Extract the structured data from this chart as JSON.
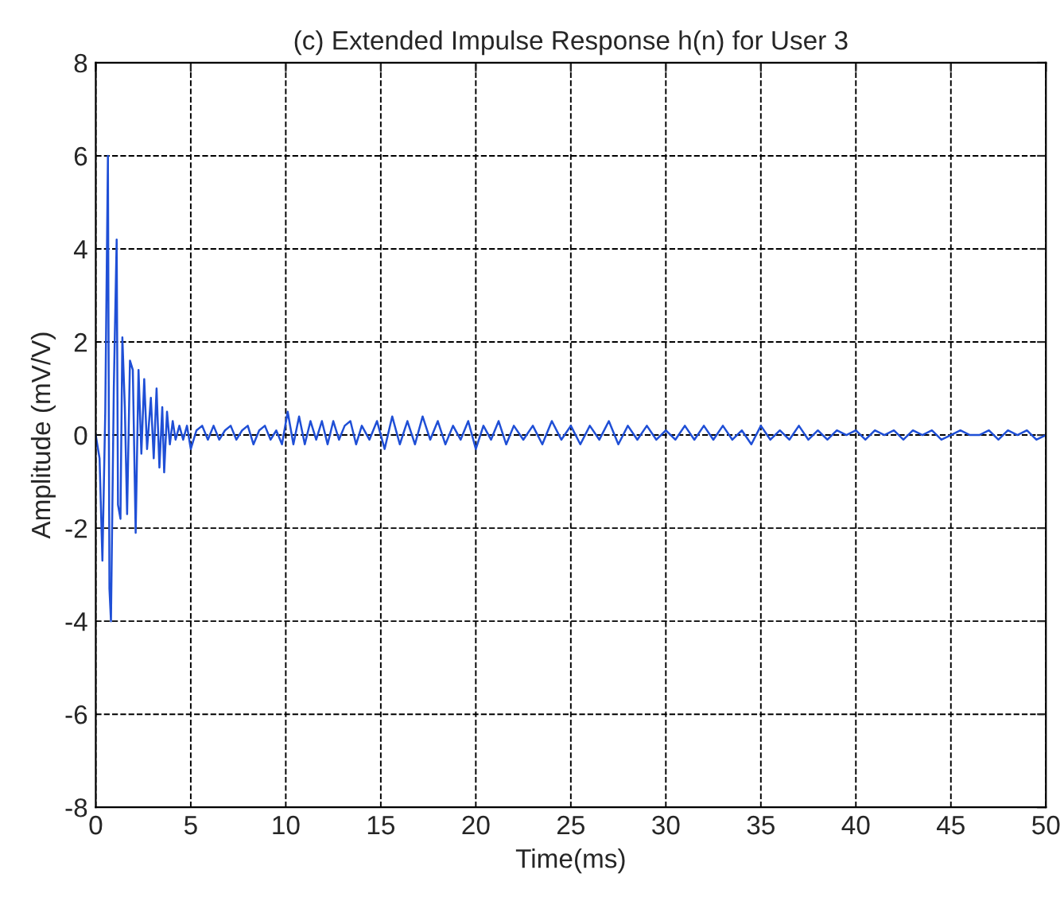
{
  "chart_data": {
    "type": "line",
    "title": "(c) Extended Impulse Response h(n) for User 3",
    "xlabel": "Time(ms)",
    "ylabel": "Amplitude (mV/V)",
    "x": [
      0,
      0.2,
      0.35,
      0.5,
      0.64,
      0.72,
      0.8,
      0.95,
      1.1,
      1.17,
      1.3,
      1.4,
      1.53,
      1.65,
      1.8,
      1.95,
      2.1,
      2.25,
      2.4,
      2.55,
      2.7,
      2.9,
      3.05,
      3.2,
      3.35,
      3.5,
      3.6,
      3.75,
      3.9,
      4.05,
      4.2,
      4.4,
      4.6,
      4.8,
      5.0,
      5.3,
      5.6,
      5.9,
      6.2,
      6.5,
      6.8,
      7.1,
      7.4,
      7.7,
      8.0,
      8.3,
      8.6,
      8.9,
      9.2,
      9.5,
      9.8,
      10.1,
      10.4,
      10.7,
      11.0,
      11.3,
      11.6,
      11.9,
      12.2,
      12.5,
      12.8,
      13.1,
      13.4,
      13.7,
      14.0,
      14.4,
      14.8,
      15.2,
      15.6,
      16.0,
      16.4,
      16.8,
      17.2,
      17.6,
      18.0,
      18.4,
      18.8,
      19.2,
      19.6,
      20.0,
      20.4,
      20.8,
      21.2,
      21.6,
      22.0,
      22.5,
      23.0,
      23.5,
      24.0,
      24.5,
      25.0,
      25.5,
      26.0,
      26.5,
      27.0,
      27.5,
      28.0,
      28.5,
      29.0,
      29.5,
      30.0,
      30.5,
      31.0,
      31.5,
      32.0,
      32.5,
      33.0,
      33.5,
      34.0,
      34.5,
      35.0,
      35.5,
      36.0,
      36.5,
      37.0,
      37.5,
      38.0,
      38.5,
      39.0,
      39.5,
      40.0,
      40.5,
      41.0,
      41.5,
      42.0,
      42.5,
      43.0,
      43.5,
      44.0,
      44.5,
      45.0,
      45.5,
      46.0,
      46.5,
      47.0,
      47.5,
      48.0,
      48.5,
      49.0,
      49.5,
      50.0
    ],
    "series": [
      {
        "color": "#1f4fd6",
        "values": [
          0,
          -0.5,
          -2.7,
          0.5,
          6.0,
          -3.3,
          -4.0,
          1.0,
          4.2,
          -1.5,
          -1.8,
          2.1,
          0.6,
          -1.7,
          1.6,
          1.4,
          -2.1,
          1.4,
          -0.4,
          1.2,
          -0.3,
          0.8,
          -0.5,
          1.0,
          -0.7,
          0.6,
          -0.8,
          0.5,
          -0.2,
          0.3,
          -0.1,
          0.2,
          -0.1,
          0.2,
          -0.3,
          0.1,
          0.2,
          -0.1,
          0.2,
          -0.1,
          0.1,
          0.2,
          -0.1,
          0.1,
          0.2,
          -0.2,
          0.1,
          0.2,
          -0.1,
          0.1,
          -0.2,
          0.5,
          -0.2,
          0.4,
          -0.2,
          0.3,
          -0.1,
          0.3,
          -0.2,
          0.3,
          -0.1,
          0.2,
          0.3,
          -0.2,
          0.2,
          -0.1,
          0.3,
          -0.3,
          0.4,
          -0.2,
          0.3,
          -0.2,
          0.4,
          -0.1,
          0.3,
          -0.2,
          0.2,
          -0.1,
          0.3,
          -0.3,
          0.2,
          -0.1,
          0.3,
          -0.2,
          0.2,
          -0.1,
          0.2,
          -0.2,
          0.3,
          -0.1,
          0.2,
          -0.2,
          0.2,
          -0.1,
          0.3,
          -0.2,
          0.2,
          -0.1,
          0.2,
          -0.1,
          0.1,
          -0.1,
          0.2,
          -0.1,
          0.2,
          -0.1,
          0.2,
          -0.1,
          0.1,
          -0.2,
          0.2,
          -0.1,
          0.1,
          -0.1,
          0.2,
          -0.1,
          0.1,
          -0.1,
          0.1,
          0.0,
          0.1,
          -0.1,
          0.1,
          0.0,
          0.1,
          -0.1,
          0.1,
          0.0,
          0.1,
          -0.1,
          0.0,
          0.1,
          0.0,
          0.0,
          0.1,
          -0.1,
          0.1,
          0.0,
          0.1,
          -0.1,
          0.0
        ]
      }
    ],
    "xlim": [
      0,
      50
    ],
    "xticks": [
      0,
      5,
      10,
      15,
      20,
      25,
      30,
      35,
      40,
      45,
      50
    ],
    "ylim": [
      -8,
      8
    ],
    "yticks": [
      -8,
      -6,
      -4,
      -2,
      0,
      2,
      4,
      6,
      8
    ],
    "grid": true,
    "line_style": "solid",
    "marker": "none"
  }
}
